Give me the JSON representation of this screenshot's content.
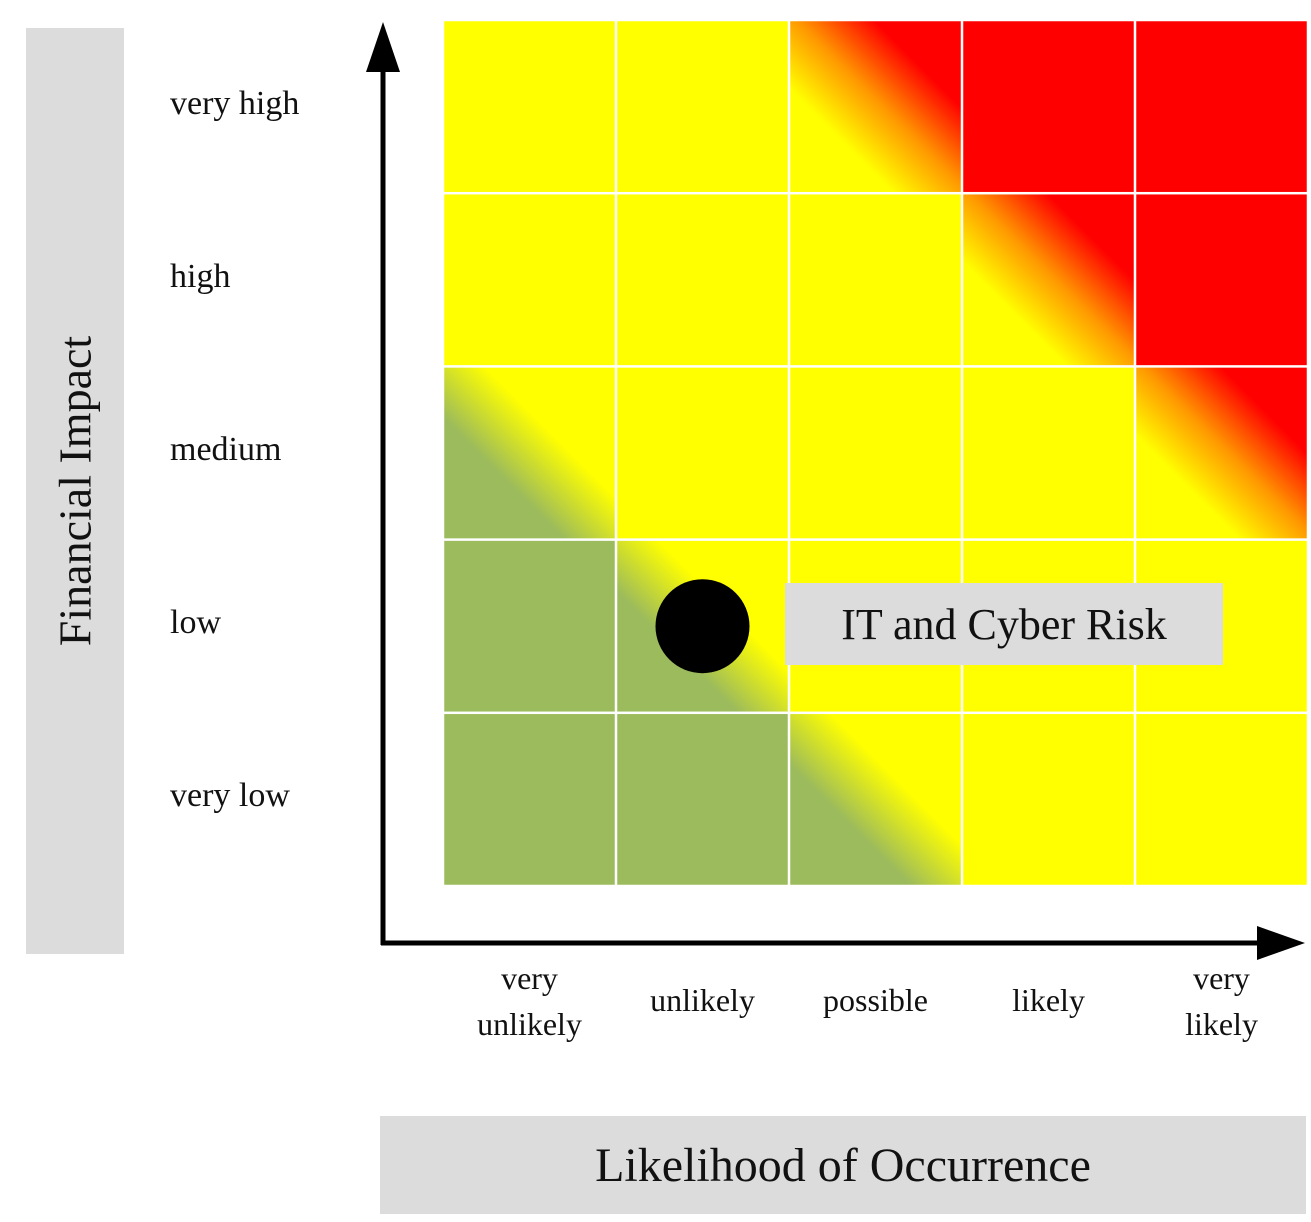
{
  "chart_data": {
    "type": "heatmap",
    "xlabel": "Likelihood of Occurrence",
    "ylabel": "Financial Impact",
    "x_categories": [
      "very\nunlikely",
      "unlikely",
      "possible",
      "likely",
      "very\nlikely"
    ],
    "y_categories": [
      "very high",
      "high",
      "medium",
      "low",
      "very low"
    ],
    "colors": {
      "green": "#9cbb5c",
      "yellow": "#ffff00",
      "red": "#ff0000",
      "orange": "#ff9900",
      "grid_line": "#ffffff",
      "axis": "#000000",
      "label_box": "#dcdcdc",
      "marker": "#000000"
    },
    "cells": [
      [
        "yellow",
        "yellow",
        "grad-yellow-red",
        "red",
        "red"
      ],
      [
        "yellow",
        "yellow",
        "yellow",
        "grad-yellow-red",
        "red"
      ],
      [
        "grad-green-yellow",
        "yellow",
        "yellow",
        "yellow",
        "grad-yellow-red"
      ],
      [
        "green",
        "grad-green-yellow",
        "yellow",
        "yellow",
        "yellow"
      ],
      [
        "green",
        "green",
        "grad-green-yellow",
        "yellow",
        "yellow"
      ]
    ],
    "marker": {
      "x": "unlikely",
      "y": "low",
      "label": "IT and Cyber Risk"
    }
  }
}
